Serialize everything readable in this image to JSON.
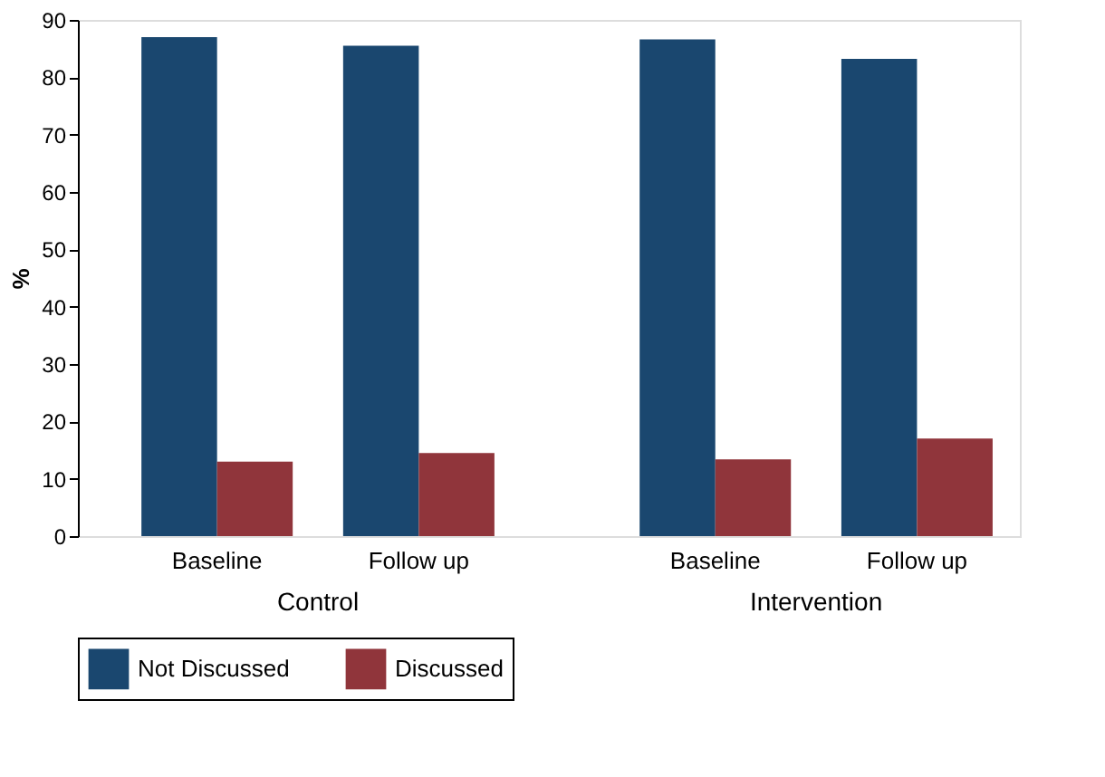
{
  "chart_data": {
    "type": "bar",
    "categories": [
      "Baseline",
      "Follow up",
      "Baseline",
      "Follow up"
    ],
    "series": [
      {
        "name": "Not Discussed",
        "color": "#1a476f",
        "values": [
          87,
          85.5,
          86.6,
          83.2
        ]
      },
      {
        "name": "Discussed",
        "color": "#90353b",
        "values": [
          13,
          14.5,
          13.4,
          17
        ]
      }
    ],
    "ylabel": "%",
    "ylim": [
      0,
      90
    ],
    "yticks": [
      0,
      10,
      20,
      30,
      40,
      50,
      60,
      70,
      80,
      90
    ],
    "annotations": [
      "Control",
      "Intervention"
    ],
    "grid": false,
    "legend": "bottom"
  }
}
